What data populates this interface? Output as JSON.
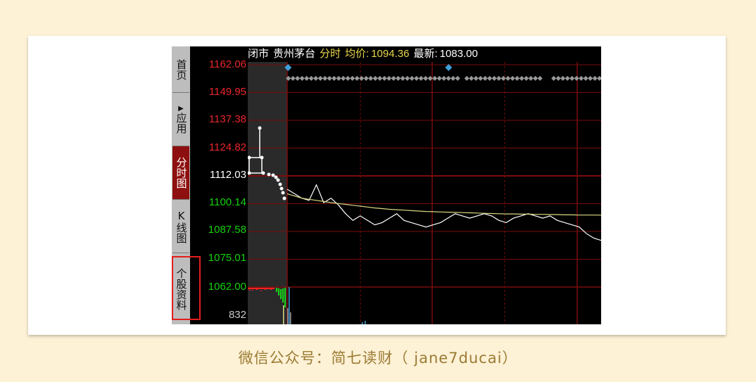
{
  "app": {
    "sidebar": {
      "tabs": [
        {
          "label": "首页",
          "active": false
        },
        {
          "label": "应用",
          "active": false,
          "icon": "play-next-icon"
        },
        {
          "label": "分时图",
          "active": true
        },
        {
          "label": "K线图",
          "active": false
        },
        {
          "label": "个股资料",
          "active": false,
          "highlighted": true
        }
      ]
    },
    "header": {
      "status": "闭市",
      "stock_name": "贵州茅台",
      "mode": "分时",
      "avg_label": "均价:",
      "avg_value": "1094.36",
      "latest_label": "最新:",
      "latest_value": "1083.00"
    },
    "price_axis": [
      {
        "label": "1162.06",
        "color": "#e8262b"
      },
      {
        "label": "1149.95",
        "color": "#e8262b"
      },
      {
        "label": "1137.38",
        "color": "#e8262b"
      },
      {
        "label": "1124.82",
        "color": "#e8262b"
      },
      {
        "label": "1112.03",
        "color": "#ffffff"
      },
      {
        "label": "1100.14",
        "color": "#16d20d"
      },
      {
        "label": "1087.58",
        "color": "#16d20d"
      },
      {
        "label": "1075.01",
        "color": "#16d20d"
      },
      {
        "label": "1062.00",
        "color": "#16d20d"
      }
    ],
    "volume_axis": {
      "label": "832",
      "color": "#c8c8c8"
    },
    "colors": {
      "grid": "#7a0c0c",
      "price_line": "#ffffff",
      "avg_line": "#d8d884",
      "preclose": "#ff1f1f",
      "marker": "#3fa0d8",
      "up": "#ff2020",
      "down": "#18d818"
    }
  },
  "chart_data": {
    "type": "line",
    "title": "",
    "ylim": [
      1062.0,
      1162.06
    ],
    "preclose": 1112.03,
    "series": [
      {
        "name": "",
        "values": [
          1106,
          1104,
          1102,
          1101,
          1108,
          1100,
          1102,
          1099,
          1095,
          1092,
          1094,
          1092,
          1090,
          1091,
          1093,
          1095,
          1092,
          1091,
          1090,
          1089,
          1090,
          1091,
          1093,
          1095,
          1094,
          1093,
          1094,
          1095,
          1094,
          1092,
          1091,
          1093,
          1094,
          1095,
          1094,
          1093,
          1094,
          1092,
          1091,
          1090,
          1089,
          1086,
          1084,
          1083
        ]
      },
      {
        "name": "",
        "values": [
          1104,
          1103,
          1102,
          1101.5,
          1101,
          1100.5,
          1100,
          1099.6,
          1099.2,
          1098.8,
          1098.4,
          1098,
          1097.6,
          1097.3,
          1097,
          1096.8,
          1096.6,
          1096.4,
          1096.2,
          1096,
          1095.9,
          1095.8,
          1095.7,
          1095.6,
          1095.5,
          1095.4,
          1095.3,
          1095.2,
          1095.1,
          1095,
          1094.9,
          1094.9,
          1094.8,
          1094.8,
          1094.7,
          1094.7,
          1094.6,
          1094.6,
          1094.5,
          1094.5,
          1094.4,
          1094.4,
          1094.4,
          1094.36
        ]
      }
    ]
  },
  "caption": "微信公众号：简七读财（ jane7ducai）"
}
